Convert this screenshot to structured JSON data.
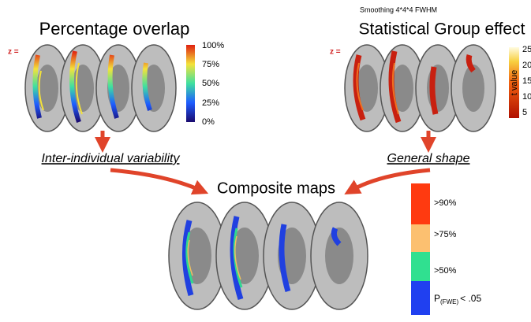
{
  "top_left": {
    "title": "Percentage overlap",
    "z_label": "z =",
    "colorbar": [
      "100%",
      "75%",
      "50%",
      "25%",
      "0%"
    ]
  },
  "top_right": {
    "note": "Smoothing 4*4*4 FWHM",
    "title": "Statistical Group effect",
    "z_label": "z =",
    "colorbar": [
      "25",
      "20",
      "15",
      "10",
      "5"
    ],
    "colorbar_title": "t value"
  },
  "arrows": {
    "left_caption": "Inter-individual variability",
    "right_caption": "General shape"
  },
  "composite": {
    "title": "Composite maps",
    "legend": [
      ">90%",
      ">75%",
      ">50%"
    ],
    "p_label": {
      "main": "P",
      "sub": "(FWE)",
      "rest": "< .05"
    }
  }
}
